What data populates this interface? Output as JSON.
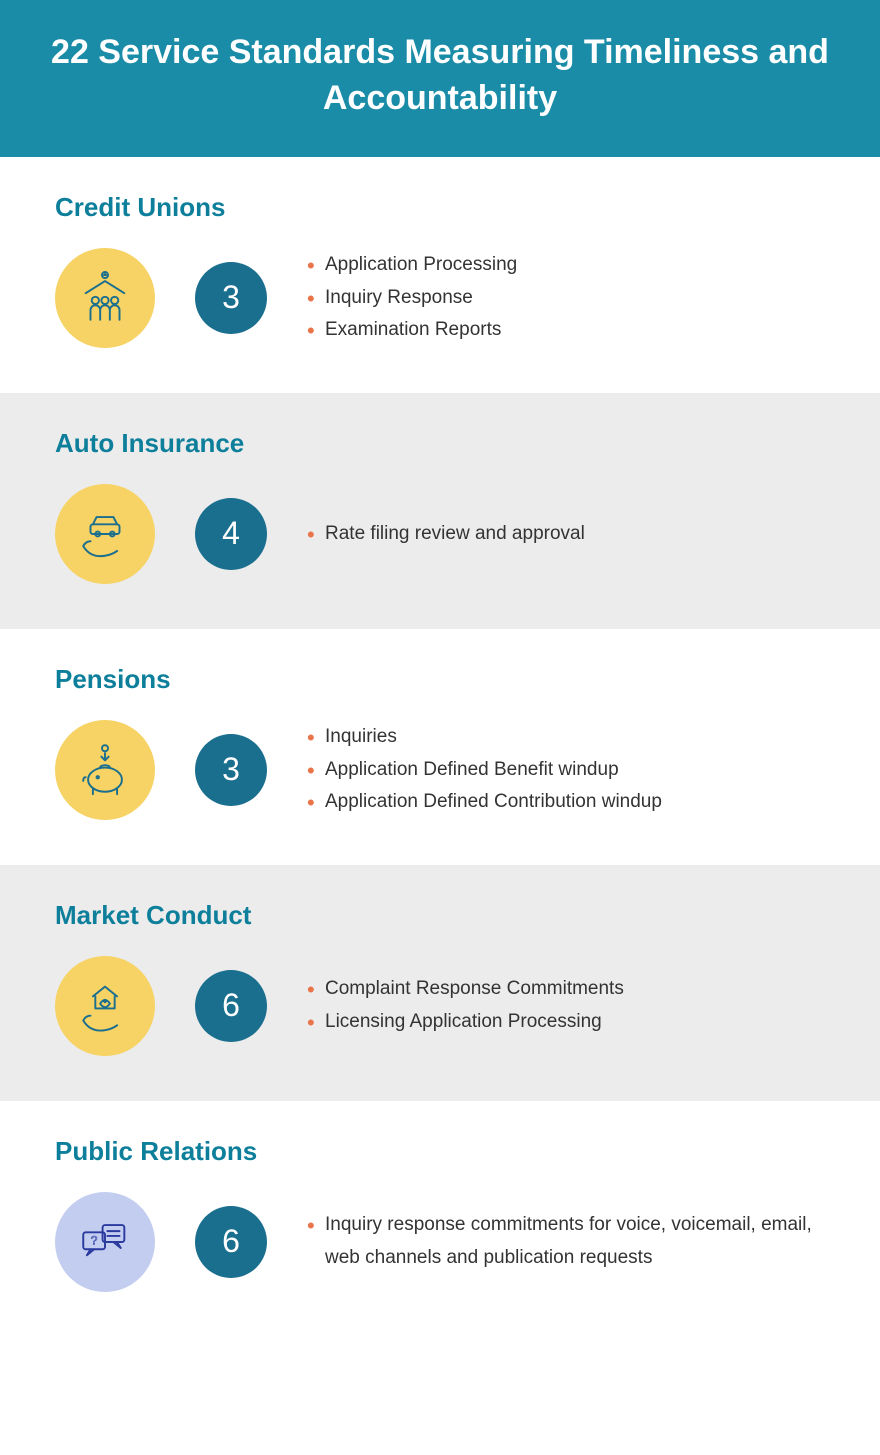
{
  "header": {
    "title": "22 Service Standards Measuring Timeliness and Accountability"
  },
  "colors": {
    "header_bg": "#1a8ca8",
    "header_text": "#ffffff",
    "section_title": "#0d7f9b",
    "alt_bg": "#ececec",
    "icon_bg_yellow": "#f6d364",
    "icon_bg_blue": "#c3cdf0",
    "icon_stroke_teal": "#1a6e8e",
    "icon_stroke_blue": "#2a3a9e",
    "count_bg": "#1a6e8e",
    "count_text": "#ffffff",
    "bullet": "#e9744a",
    "body_text": "#333333"
  },
  "sections": [
    {
      "title": "Credit Unions",
      "count": "3",
      "alt": false,
      "icon": "credit-union",
      "icon_bg": "yellow",
      "items": [
        "Application Processing",
        "Inquiry Response",
        "Examination Reports"
      ]
    },
    {
      "title": "Auto Insurance",
      "count": "4",
      "alt": true,
      "icon": "auto",
      "icon_bg": "yellow",
      "items": [
        "Rate filing review and approval"
      ]
    },
    {
      "title": "Pensions",
      "count": "3",
      "alt": false,
      "icon": "pension",
      "icon_bg": "yellow",
      "items": [
        "Inquiries",
        "Application Defined Benefit windup",
        "Application Defined Contribution windup"
      ]
    },
    {
      "title": "Market Conduct",
      "count": "6",
      "alt": true,
      "icon": "market",
      "icon_bg": "yellow",
      "items": [
        "Complaint Response Commitments",
        "Licensing Application Processing"
      ]
    },
    {
      "title": "Public Relations",
      "count": "6",
      "alt": false,
      "icon": "public",
      "icon_bg": "blue",
      "items": [
        "Inquiry response commitments for voice, voicemail, email, web channels and publication requests"
      ]
    }
  ]
}
